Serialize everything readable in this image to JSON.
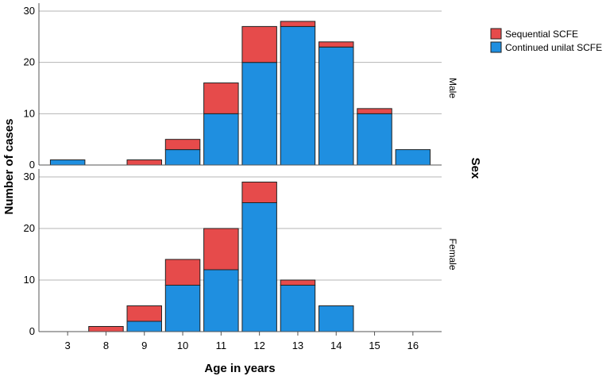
{
  "chart_data": {
    "type": "bar",
    "stacked": true,
    "xlabel": "Age in years",
    "ylabel": "Number of cases",
    "facet_title": "Sex",
    "categories": [
      "3",
      "8",
      "9",
      "10",
      "11",
      "12",
      "13",
      "14",
      "15",
      "16"
    ],
    "legend": {
      "placement": "top-right",
      "items": [
        {
          "name": "Sequential SCFE",
          "color": "#e64b4b"
        },
        {
          "name": "Continued unilat SCFE",
          "color": "#1f8fe0"
        }
      ]
    },
    "grid": true,
    "panels": [
      {
        "facet": "Male",
        "ylim": [
          0,
          30
        ],
        "yticks": [
          "0",
          "10",
          "20",
          "30"
        ],
        "series": [
          {
            "name": "Continued unilat SCFE",
            "values": [
              1,
              0,
              0,
              3,
              10,
              20,
              27,
              23,
              10,
              3
            ]
          },
          {
            "name": "Sequential SCFE",
            "values": [
              0,
              0,
              1,
              2,
              6,
              7,
              1,
              1,
              1,
              0
            ]
          }
        ]
      },
      {
        "facet": "Female",
        "ylim": [
          0,
          30
        ],
        "yticks": [
          "0",
          "10",
          "20",
          "30"
        ],
        "series": [
          {
            "name": "Continued unilat SCFE",
            "values": [
              0,
              0,
              2,
              9,
              12,
              25,
              9,
              5,
              0,
              0
            ]
          },
          {
            "name": "Sequential SCFE",
            "values": [
              0,
              1,
              3,
              5,
              8,
              4,
              1,
              0,
              0,
              0
            ]
          }
        ]
      }
    ]
  }
}
